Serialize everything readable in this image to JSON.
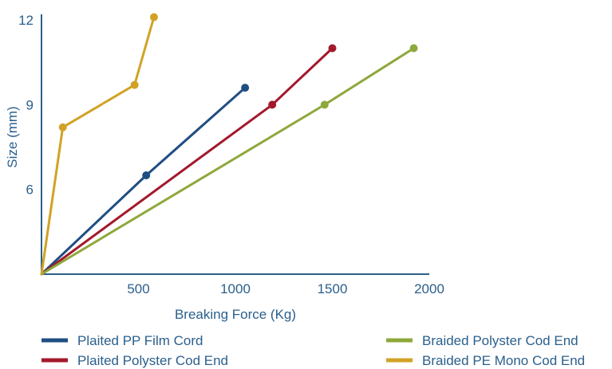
{
  "chart_data": {
    "type": "line",
    "xlabel": "Breaking Force (Kg)",
    "ylabel": "Size (mm)",
    "xlim": [
      0,
      2000
    ],
    "ylim": [
      3,
      12.2
    ],
    "x_ticks": [
      500,
      1000,
      1500,
      2000
    ],
    "y_ticks": [
      6,
      9,
      12
    ],
    "grid": false,
    "legend_placement": "bottom",
    "series": [
      {
        "name": "Plaited PP Film Cord",
        "color": "#1f4e82",
        "points": [
          [
            0,
            3
          ],
          [
            540,
            6.5
          ],
          [
            1050,
            9.6
          ]
        ]
      },
      {
        "name": "Plaited Polyster Cod End",
        "color": "#a3192c",
        "points": [
          [
            0,
            3
          ],
          [
            1190,
            9
          ],
          [
            1500,
            11
          ]
        ]
      },
      {
        "name": "Braided Polyster Cod End",
        "color": "#8ea83c",
        "points": [
          [
            0,
            3
          ],
          [
            1460,
            9
          ],
          [
            1920,
            11
          ]
        ]
      },
      {
        "name": "Braided PE Mono Cod End",
        "color": "#d1a225",
        "points": [
          [
            0,
            3
          ],
          [
            110,
            8.2
          ],
          [
            480,
            9.7
          ],
          [
            580,
            12.1
          ]
        ]
      }
    ]
  }
}
